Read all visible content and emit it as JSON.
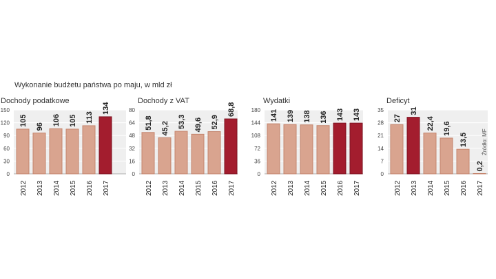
{
  "headline": "Wykonanie budżetu państwa po maju, w mld zł",
  "source": "Źródło: MF",
  "colors": {
    "bar_light": "#d9a48f",
    "bar_light_edge": "#c4846c",
    "bar_dark": "#a31d2e",
    "bar_dark_edge": "#7d1422",
    "panel_bg": "#efefef",
    "grid": "#ffffff"
  },
  "chart_data": [
    {
      "type": "bar",
      "title": "Dochody podatkowe",
      "categories": [
        "2012",
        "2013",
        "2014",
        "2015",
        "2016",
        "2017"
      ],
      "values": [
        105,
        96,
        106,
        105,
        113,
        134
      ],
      "value_labels": [
        "105",
        "96",
        "106",
        "105",
        "113",
        "134"
      ],
      "highlight": [
        false,
        false,
        false,
        false,
        false,
        true
      ],
      "ylim": [
        0,
        150
      ],
      "yticks": [
        "0",
        "30",
        "60",
        "90",
        "120",
        "150"
      ],
      "ytick_values": [
        0,
        30,
        60,
        90,
        120,
        150
      ]
    },
    {
      "type": "bar",
      "title": "Dochody z VAT",
      "categories": [
        "2012",
        "2013",
        "2014",
        "2015",
        "2016",
        "2017"
      ],
      "values": [
        51.8,
        45.2,
        53.3,
        49.6,
        52.9,
        68.8
      ],
      "value_labels": [
        "51,8",
        "45,2",
        "53,3",
        "49,6",
        "52,9",
        "68,8"
      ],
      "highlight": [
        false,
        false,
        false,
        false,
        false,
        true
      ],
      "ylim": [
        0,
        80
      ],
      "yticks": [
        "0",
        "16",
        "32",
        "48",
        "64",
        "80"
      ],
      "ytick_values": [
        0,
        16,
        32,
        48,
        64,
        80
      ]
    },
    {
      "type": "bar",
      "title": "Wydatki",
      "categories": [
        "2012",
        "2013",
        "2014",
        "2015",
        "2016",
        "2017"
      ],
      "values": [
        141,
        139,
        138,
        136,
        143,
        143
      ],
      "value_labels": [
        "141",
        "139",
        "138",
        "136",
        "143",
        "143"
      ],
      "highlight": [
        false,
        false,
        false,
        false,
        true,
        true
      ],
      "ylim": [
        0,
        180
      ],
      "yticks": [
        "0",
        "36",
        "72",
        "108",
        "144",
        "180"
      ],
      "ytick_values": [
        0,
        36,
        72,
        108,
        144,
        180
      ]
    },
    {
      "type": "bar",
      "title": "Deficyt",
      "categories": [
        "2012",
        "2013",
        "2014",
        "2015",
        "2016",
        "2017"
      ],
      "values": [
        27,
        31,
        22.4,
        19.6,
        13.5,
        0.2
      ],
      "value_labels": [
        "27",
        "31",
        "22,4",
        "19,6",
        "13,5",
        "0,2"
      ],
      "highlight": [
        false,
        true,
        false,
        false,
        false,
        false
      ],
      "ylim": [
        0,
        35
      ],
      "yticks": [
        "0",
        "7",
        "14",
        "21",
        "28",
        "35"
      ],
      "ytick_values": [
        0,
        7,
        14,
        21,
        28,
        35
      ]
    }
  ]
}
